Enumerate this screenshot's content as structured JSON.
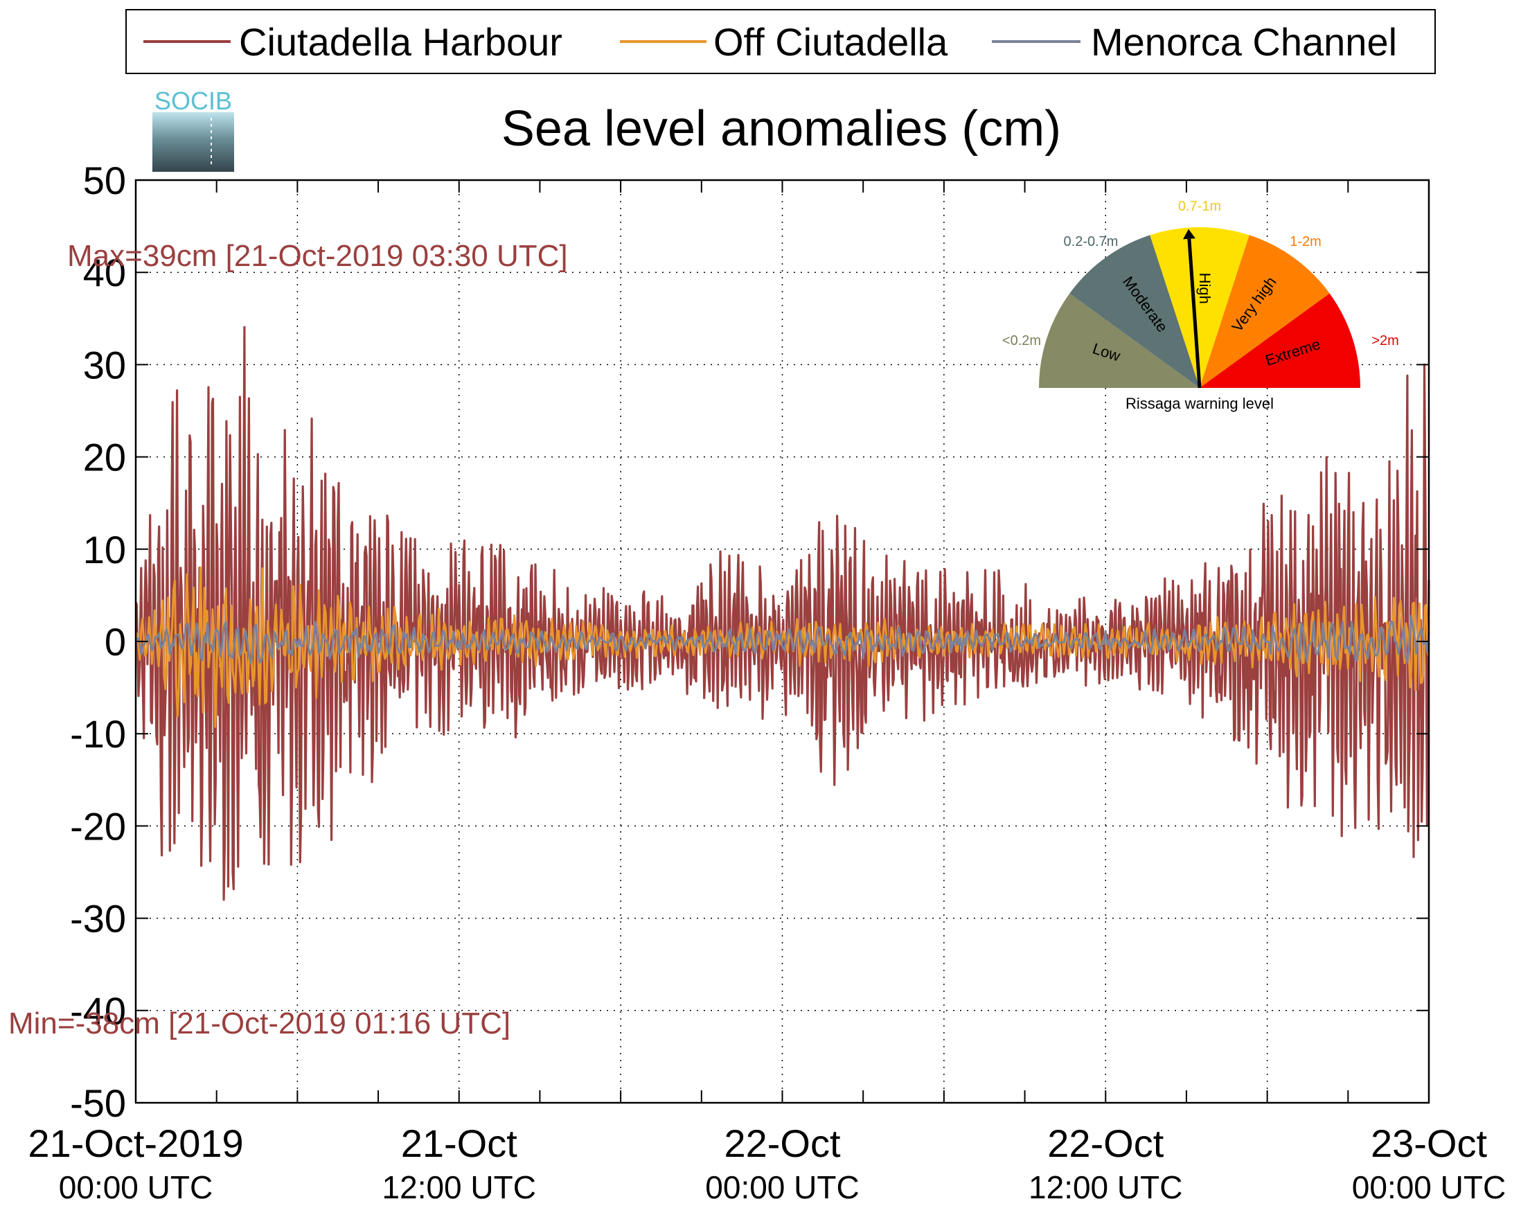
{
  "logo": {
    "text": "SOCIB"
  },
  "chart_data": {
    "type": "line",
    "title": "Sea level anomalies (cm)",
    "xlabel": "",
    "ylabel": "",
    "ylim": [
      -50,
      50
    ],
    "yticks": [
      50,
      40,
      30,
      20,
      10,
      0,
      -10,
      -20,
      -30,
      -40,
      -50
    ],
    "xlim_hours": [
      0,
      48
    ],
    "x_ticks": [
      {
        "line1": "21-Oct-2019",
        "line2": "00:00 UTC"
      },
      {
        "line1": "21-Oct",
        "line2": "12:00 UTC"
      },
      {
        "line1": "22-Oct",
        "line2": "00:00 UTC"
      },
      {
        "line1": "22-Oct",
        "line2": "12:00 UTC"
      },
      {
        "line1": "23-Oct",
        "line2": "00:00 UTC"
      }
    ],
    "grid": true,
    "legend": "top",
    "annotations": {
      "max": "Max=39cm [21-Oct-2019 03:30 UTC]",
      "min": "Min=-38cm [21-Oct-2019 01:16 UTC]"
    },
    "series": [
      {
        "name": "Ciutadella Harbour",
        "color": "#9b3f3f",
        "envelope_hours": [
          0,
          1,
          2,
          3,
          4,
          5,
          6,
          7,
          8,
          10,
          12,
          14,
          16,
          18,
          20,
          22,
          24,
          25,
          26,
          27,
          28,
          30,
          32,
          34,
          36,
          38,
          40,
          42,
          44,
          46,
          47,
          48
        ],
        "envelope_cm": [
          6,
          25,
          30,
          30,
          37,
          27,
          27,
          24,
          20,
          12,
          11,
          11,
          7,
          6,
          5,
          11,
          8,
          15,
          16,
          13,
          10,
          8,
          8,
          5,
          5,
          7,
          9,
          16,
          22,
          24,
          30,
          35
        ]
      },
      {
        "name": "Off Ciutadella",
        "color": "#e8962c",
        "envelope_hours": [
          0,
          2,
          4,
          6,
          8,
          10,
          14,
          18,
          22,
          26,
          30,
          34,
          38,
          42,
          46,
          48
        ],
        "envelope_cm": [
          2,
          11,
          10,
          7,
          5,
          4,
          3,
          2,
          2,
          3,
          2,
          2,
          2,
          4,
          5,
          6
        ]
      },
      {
        "name": "Menorca Channel",
        "color": "#7b8299",
        "envelope_hours": [
          0,
          4,
          8,
          12,
          20,
          26,
          34,
          40,
          44,
          48
        ],
        "envelope_cm": [
          1.5,
          2.5,
          2,
          1.5,
          1,
          2,
          1,
          1.5,
          2.5,
          3
        ]
      }
    ]
  },
  "warning_gauge": {
    "caption": "Rissaga warning level",
    "pointer_level": "High",
    "sectors": [
      {
        "name": "Low",
        "range_label": "<0.2m",
        "color": "#868a65",
        "range_color": "#7b7f5a"
      },
      {
        "name": "Moderate",
        "range_label": "0.2-0.7m",
        "color": "#5e7374",
        "range_color": "#4f6568"
      },
      {
        "name": "High",
        "range_label": "0.7-1m",
        "color": "#ffe100",
        "range_color": "#f2c81a"
      },
      {
        "name": "Very high",
        "range_label": "1-2m",
        "color": "#ff8000",
        "range_color": "#ff7a00"
      },
      {
        "name": "Extreme",
        "range_label": ">2m",
        "color": "#f20000",
        "range_color": "#e00000"
      }
    ]
  }
}
